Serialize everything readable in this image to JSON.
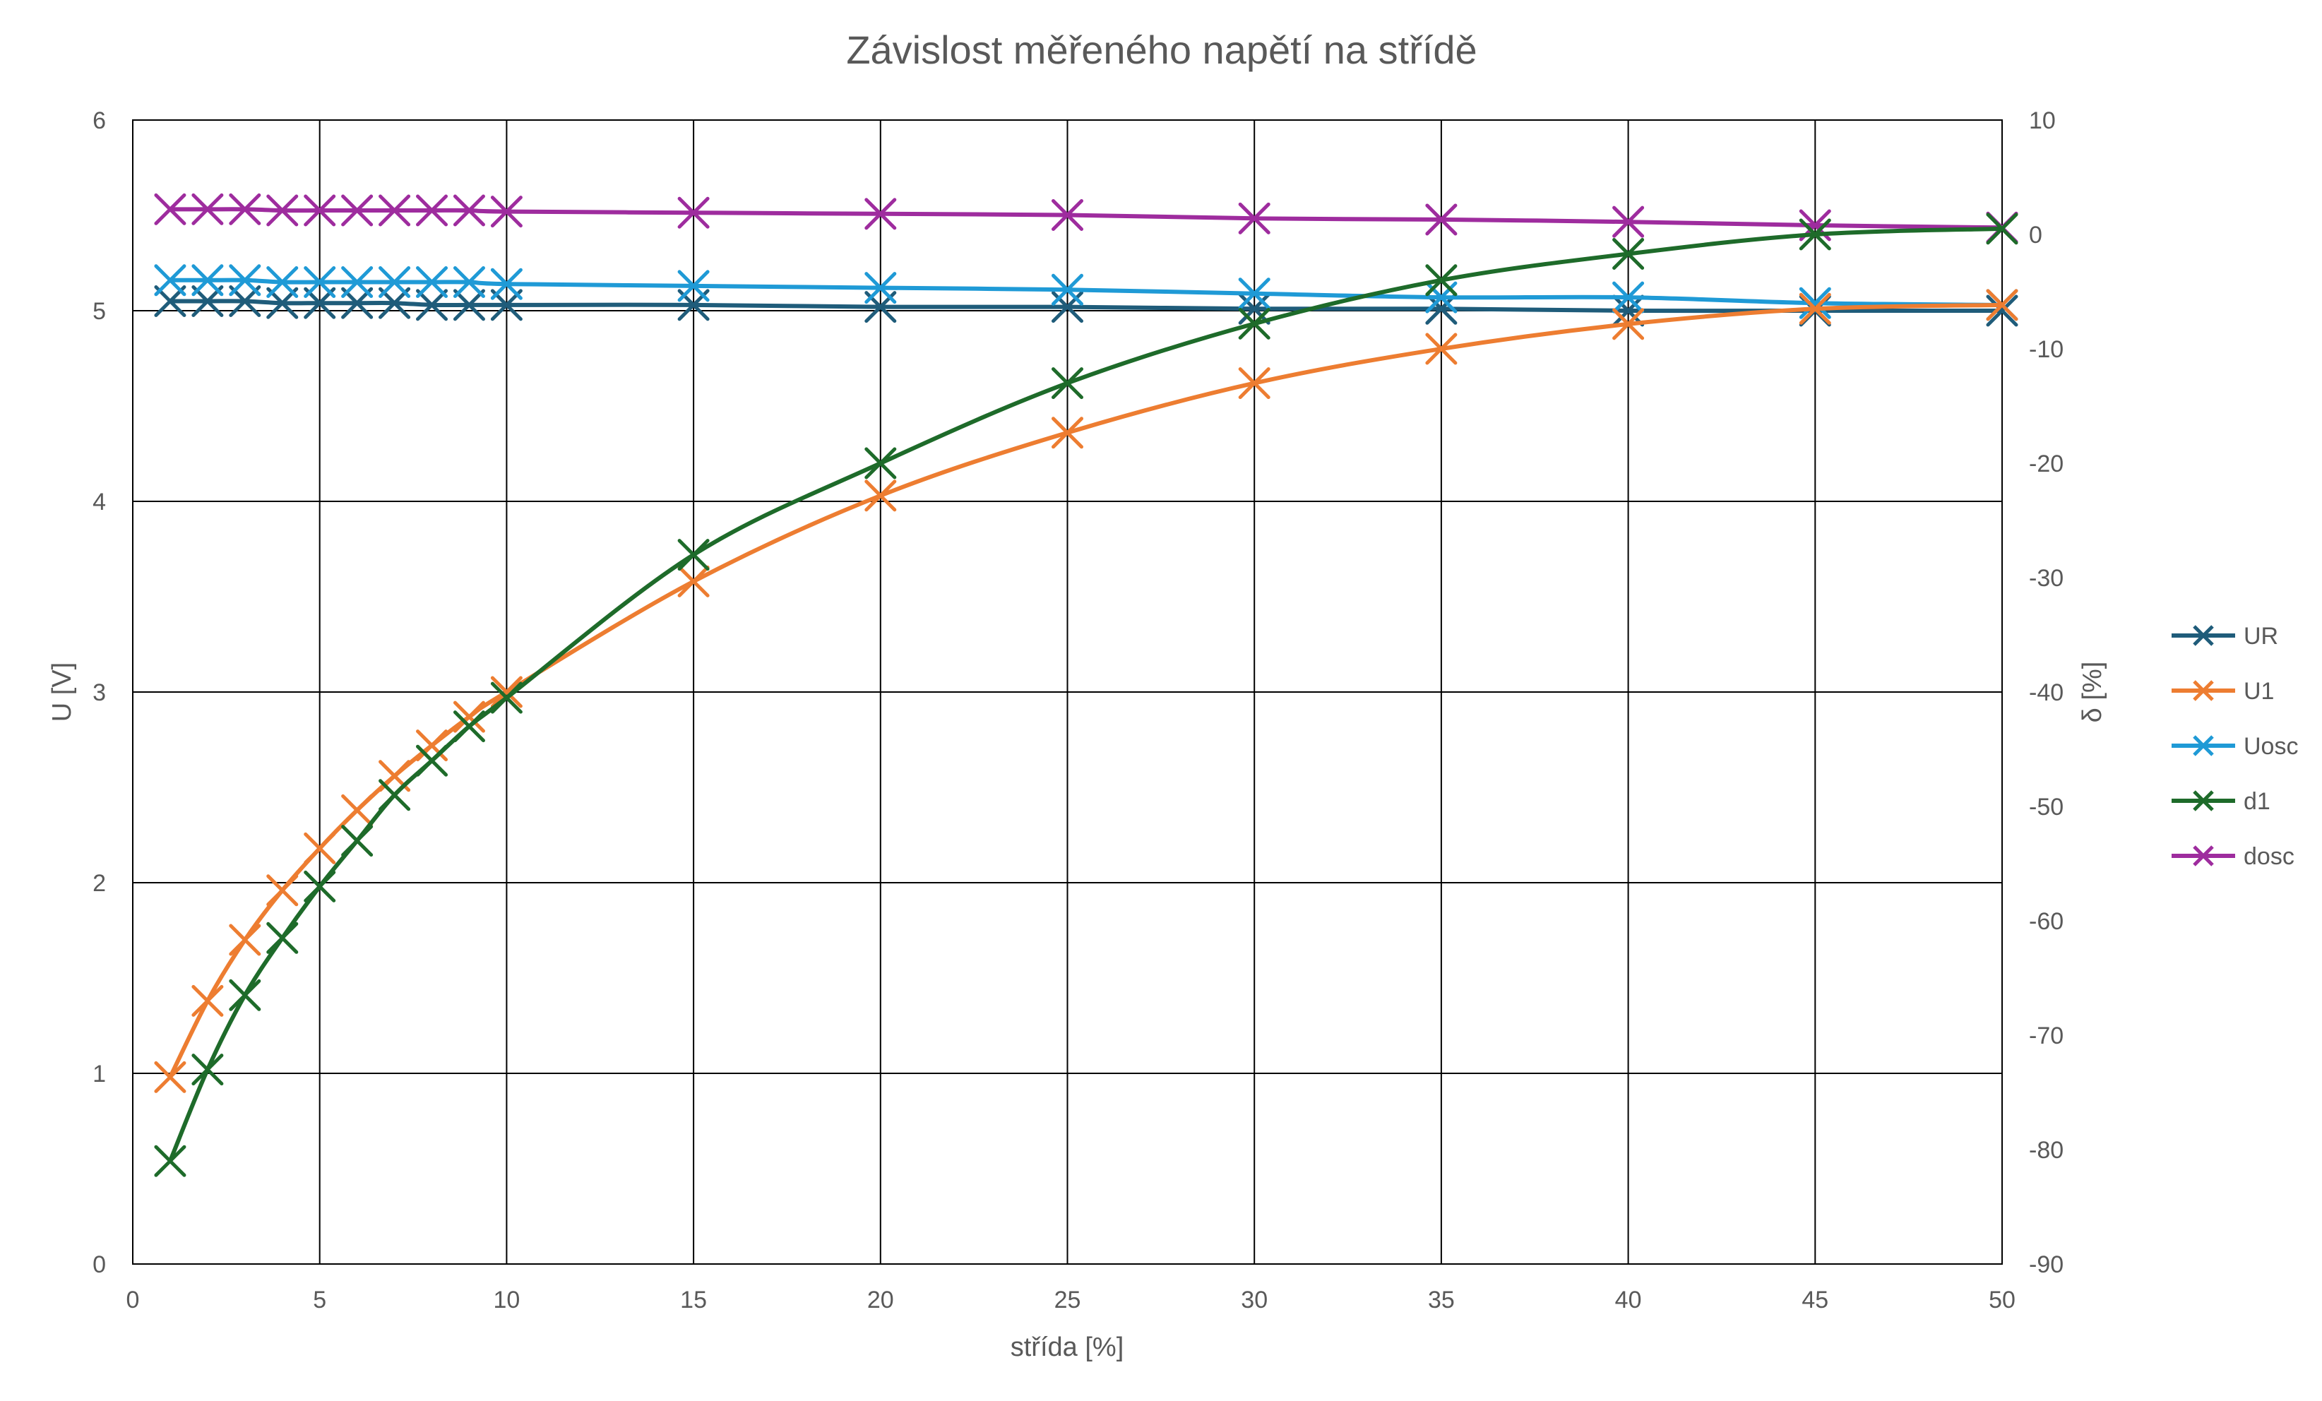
{
  "chart_data": {
    "type": "line",
    "title": "Závislost měřeného napětí na střídě",
    "xlabel": "střída [%]",
    "ylabel": "U [V]",
    "y2label": "δ [%]",
    "xlim": [
      0,
      50
    ],
    "ylim": [
      0,
      6
    ],
    "y2lim": [
      -90,
      10
    ],
    "xticks": [
      "0",
      "5",
      "10",
      "15",
      "20",
      "25",
      "30",
      "35",
      "40",
      "45",
      "50"
    ],
    "yticks": [
      "0",
      "1",
      "2",
      "3",
      "4",
      "5",
      "6"
    ],
    "y2ticks": [
      "-90",
      "-80",
      "-70",
      "-60",
      "-50",
      "-40",
      "-30",
      "-20",
      "-10",
      "0",
      "10"
    ],
    "grid": true,
    "legend_position": "right",
    "x": [
      1,
      2,
      3,
      4,
      5,
      6,
      7,
      8,
      9,
      10,
      15,
      20,
      25,
      30,
      35,
      40,
      45,
      50
    ],
    "series": [
      {
        "name": "UR",
        "axis": "left",
        "color": "#1F5C7A",
        "values": [
          5.05,
          5.05,
          5.05,
          5.04,
          5.04,
          5.04,
          5.04,
          5.03,
          5.03,
          5.03,
          5.03,
          5.02,
          5.02,
          5.01,
          5.01,
          5.0,
          5.0,
          5.0
        ]
      },
      {
        "name": "U1",
        "axis": "left",
        "color": "#ED7D31",
        "values": [
          0.98,
          1.38,
          1.7,
          1.96,
          2.18,
          2.38,
          2.56,
          2.72,
          2.87,
          3.0,
          3.58,
          4.03,
          4.36,
          4.62,
          4.8,
          4.93,
          5.01,
          5.03
        ]
      },
      {
        "name": "Uosc",
        "axis": "left",
        "color": "#1F9AD6",
        "values": [
          5.16,
          5.16,
          5.16,
          5.15,
          5.15,
          5.15,
          5.15,
          5.15,
          5.15,
          5.14,
          5.13,
          5.12,
          5.11,
          5.09,
          5.07,
          5.07,
          5.04,
          5.03
        ]
      },
      {
        "name": "d1",
        "axis": "right",
        "color": "#1E6B2A",
        "values": [
          -81,
          -73,
          -66.5,
          -61.5,
          -57,
          -53,
          -49,
          -46,
          -43,
          -40.5,
          -28,
          -20,
          -13,
          -7.8,
          -4,
          -1.7,
          0,
          0.5
        ]
      },
      {
        "name": "dosc",
        "axis": "right",
        "color": "#9E2C9E",
        "values": [
          2.2,
          2.2,
          2.2,
          2.1,
          2.1,
          2.1,
          2.1,
          2.1,
          2.1,
          2.0,
          1.9,
          1.8,
          1.7,
          1.4,
          1.3,
          1.1,
          0.8,
          0.6
        ]
      }
    ]
  }
}
